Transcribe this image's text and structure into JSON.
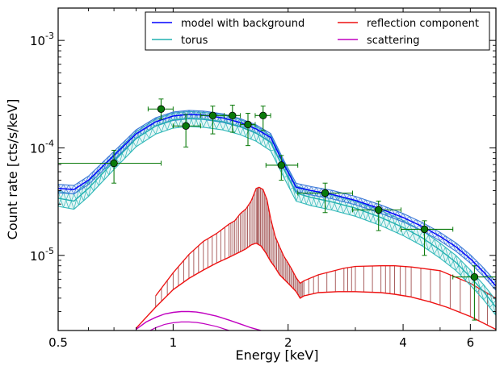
{
  "chart_data": {
    "type": "line",
    "xlabel": "Energy [keV]",
    "ylabel": "Count rate [cts/s/keV]",
    "xscale": "log",
    "yscale": "log",
    "xlim": [
      0.5,
      7.0
    ],
    "ylim": [
      2e-06,
      0.002
    ],
    "grid": false,
    "legend_placement": "top-right",
    "x_ticks": [
      {
        "value": 0.5,
        "label": "0.5"
      },
      {
        "value": 1,
        "label": "1"
      },
      {
        "value": 2,
        "label": "2"
      },
      {
        "value": 4,
        "label": "4"
      },
      {
        "value": 6,
        "label": "6"
      }
    ],
    "y_ticks": [
      {
        "value": 1e-05,
        "base": "10",
        "exp": "-5"
      },
      {
        "value": 0.0001,
        "base": "10",
        "exp": "-4"
      },
      {
        "value": 0.001,
        "base": "10",
        "exp": "-3"
      }
    ],
    "series": [
      {
        "name": "model with background",
        "color": "#0000ff",
        "legend_col": 0,
        "legend_row": 0,
        "x": [
          0.5,
          0.55,
          0.6,
          0.7,
          0.8,
          0.9,
          1.0,
          1.1,
          1.2,
          1.35,
          1.5,
          1.65,
          1.8,
          1.95,
          2.1,
          2.3,
          2.6,
          3.0,
          3.5,
          4.0,
          4.5,
          5.0,
          5.5,
          6.0,
          6.5,
          7.0
        ],
        "y": [
          4.2e-05,
          4.1e-05,
          5e-05,
          8.5e-05,
          0.000135,
          0.000175,
          0.000198,
          0.000205,
          0.000202,
          0.00019,
          0.000172,
          0.00015,
          0.000125,
          7e-05,
          4.3e-05,
          4e-05,
          3.7e-05,
          3.25e-05,
          2.7e-05,
          2.25e-05,
          1.85e-05,
          1.5e-05,
          1.2e-05,
          9.3e-06,
          7e-06,
          5.2e-06
        ]
      },
      {
        "name": "torus",
        "color": "#20b0b0",
        "legend_col": 0,
        "legend_row": 1,
        "x": [
          0.5,
          0.55,
          0.6,
          0.7,
          0.8,
          0.9,
          1.0,
          1.1,
          1.2,
          1.35,
          1.5,
          1.65,
          1.8,
          1.95,
          2.1,
          2.3,
          2.6,
          3.0,
          3.5,
          4.0,
          4.5,
          5.0,
          5.5,
          6.0,
          6.5,
          7.0
        ],
        "y": [
          3.4e-05,
          3.2e-05,
          4.2e-05,
          7.5e-05,
          0.000122,
          0.00016,
          0.000182,
          0.000188,
          0.000185,
          0.000175,
          0.000158,
          0.000137,
          0.000112,
          6.3e-05,
          3.8e-05,
          3.45e-05,
          3.15e-05,
          2.75e-05,
          2.25e-05,
          1.82e-05,
          1.45e-05,
          1.12e-05,
          8.6e-06,
          6.3e-06,
          4.6e-06,
          3.3e-06
        ]
      },
      {
        "name": "reflection component",
        "color": "#ee1111",
        "legend_col": 1,
        "legend_row": 0,
        "x": [
          0.8,
          0.9,
          1.0,
          1.1,
          1.2,
          1.3,
          1.4,
          1.5,
          1.55,
          1.6,
          1.65,
          1.7,
          1.75,
          1.8,
          1.85,
          1.9,
          2.0,
          2.1,
          2.15,
          2.2,
          2.4,
          2.7,
          3.0,
          3.5,
          3.8,
          4.2,
          4.7,
          5.2,
          6.0,
          7.0
        ],
        "y": [
          2.1e-06,
          3.3e-06,
          4.8e-06,
          6.1e-06,
          7.3e-06,
          8.5e-06,
          9.6e-06,
          1.08e-05,
          1.15e-05,
          1.25e-05,
          1.3e-05,
          1.22e-05,
          1.05e-05,
          8.8e-06,
          7.7e-06,
          6.6e-06,
          5.5e-06,
          4.6e-06,
          4e-06,
          4.2e-06,
          4.5e-06,
          4.6e-06,
          4.6e-06,
          4.5e-06,
          4.35e-06,
          4.1e-06,
          3.7e-06,
          3.3e-06,
          2.7e-06,
          2.05e-06
        ]
      },
      {
        "name": "scattering",
        "color": "#c000c0",
        "legend_col": 1,
        "legend_row": 1,
        "x": [
          0.8,
          0.85,
          0.9,
          0.95,
          1.0,
          1.05,
          1.1,
          1.15,
          1.2,
          1.3,
          1.4,
          1.5,
          1.6,
          1.7
        ],
        "y": [
          2.05e-06,
          2.4e-06,
          2.65e-06,
          2.85e-06,
          2.95e-06,
          3e-06,
          3e-06,
          2.97e-06,
          2.9e-06,
          2.72e-06,
          2.5e-06,
          2.3e-06,
          2.12e-06,
          2e-06
        ]
      }
    ],
    "reflection_upper": {
      "x": [
        0.9,
        1.0,
        1.1,
        1.2,
        1.3,
        1.4,
        1.45,
        1.5,
        1.55,
        1.6,
        1.65,
        1.68,
        1.72,
        1.76,
        1.8,
        1.85,
        1.9,
        1.95,
        2.0,
        2.05,
        2.1,
        2.15,
        2.2,
        2.4,
        2.8,
        3.0,
        3.5,
        3.8,
        4.2,
        5.0,
        6.0,
        7.0
      ],
      "y": [
        4.2e-06,
        6.9e-06,
        1.02e-05,
        1.35e-05,
        1.6e-05,
        1.95e-05,
        2.1e-05,
        2.45e-05,
        2.7e-05,
        3.2e-05,
        4.2e-05,
        4.3e-05,
        4.1e-05,
        3.3e-05,
        2.2e-05,
        1.5e-05,
        1.2e-05,
        9.8e-06,
        8.5e-06,
        7.3e-06,
        6.2e-06,
        5.5e-06,
        5.8e-06,
        6.6e-06,
        7.6e-06,
        7.9e-06,
        8e-06,
        8e-06,
        7.8e-06,
        7.2e-06,
        5.5e-06,
        4e-06
      ]
    },
    "data_points": [
      {
        "x": 0.7,
        "y": 7.2e-05,
        "xerr": [
          0.5,
          0.93
        ],
        "yerr": [
          4.7e-05,
          9.5e-05
        ]
      },
      {
        "x": 0.93,
        "y": 0.00023,
        "xerr": [
          0.86,
          1.0
        ],
        "yerr": [
          0.000185,
          0.000285
        ]
      },
      {
        "x": 1.08,
        "y": 0.00016,
        "xerr": [
          1.0,
          1.18
        ],
        "yerr": [
          0.000102,
          0.000205
        ]
      },
      {
        "x": 1.27,
        "y": 0.0002,
        "xerr": [
          1.18,
          1.36
        ],
        "yerr": [
          0.000135,
          0.000245
        ]
      },
      {
        "x": 1.43,
        "y": 0.0002,
        "xerr": [
          1.36,
          1.5
        ],
        "yerr": [
          0.00014,
          0.00025
        ]
      },
      {
        "x": 1.57,
        "y": 0.000165,
        "xerr": [
          1.5,
          1.64
        ],
        "yerr": [
          0.000105,
          0.00021
        ]
      },
      {
        "x": 1.72,
        "y": 0.0002,
        "xerr": [
          1.64,
          1.8
        ],
        "yerr": [
          0.000145,
          0.000245
        ]
      },
      {
        "x": 1.92,
        "y": 6.9e-05,
        "xerr": [
          1.75,
          2.12
        ],
        "yerr": [
          5e-05,
          8.5e-05
        ]
      },
      {
        "x": 2.5,
        "y": 3.8e-05,
        "xerr": [
          2.12,
          2.95
        ],
        "yerr": [
          2.5e-05,
          4.7e-05
        ]
      },
      {
        "x": 3.45,
        "y": 2.65e-05,
        "xerr": [
          2.95,
          3.95
        ],
        "yerr": [
          1.7e-05,
          3.2e-05
        ]
      },
      {
        "x": 4.55,
        "y": 1.75e-05,
        "xerr": [
          3.95,
          5.4
        ],
        "yerr": [
          1e-05,
          2.1e-05
        ]
      },
      {
        "x": 6.15,
        "y": 6.3e-06,
        "xerr": [
          5.4,
          7.0
        ],
        "yerr": [
          2.5e-06,
          8e-06
        ]
      }
    ],
    "colors": {
      "data_point": "#0a7a0a",
      "error_bar": "#0a7a0a",
      "reflection_hatch": "#a05050",
      "model_band": "#3a78d8",
      "torus_band": "#30b8b8"
    }
  }
}
